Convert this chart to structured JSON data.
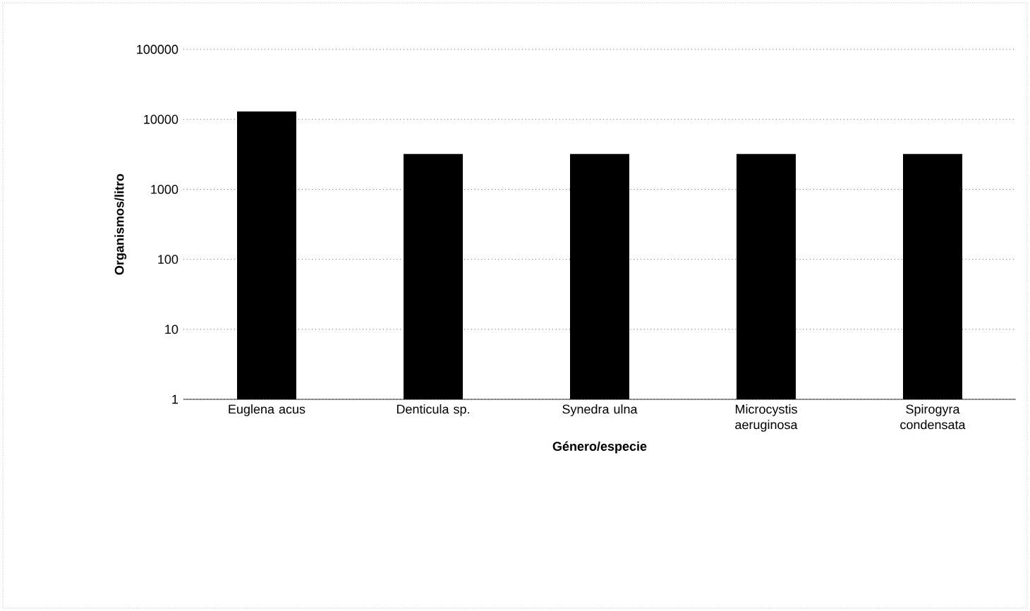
{
  "chart_data": {
    "type": "bar",
    "xlabel": "Género/especie",
    "ylabel": "Organismos/litro",
    "categories": [
      "Euglena acus",
      "Denticula sp.",
      "Synedra ulna",
      "Microcystis aeruginosa",
      "Spirogyra condensata"
    ],
    "values": [
      13000,
      3200,
      3200,
      3200,
      3200
    ],
    "color": "#000000",
    "log": "y",
    "ylim": [
      1,
      100000
    ],
    "yticks": [
      1,
      10,
      100,
      1000,
      10000,
      100000
    ],
    "grid": "y"
  }
}
